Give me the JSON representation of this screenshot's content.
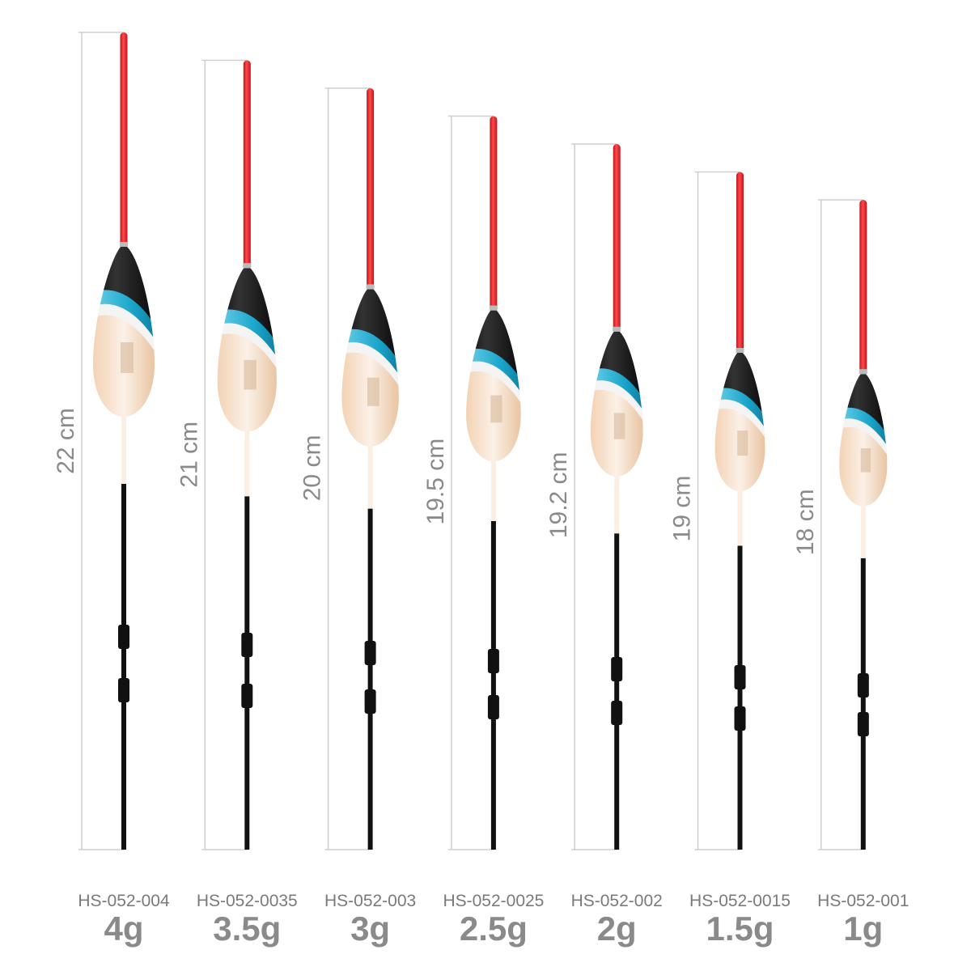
{
  "floats": [
    {
      "length": "22 cm",
      "code": "HS-052-004",
      "weight": "4g"
    },
    {
      "length": "21 cm",
      "code": "HS-052-0035",
      "weight": "3.5g"
    },
    {
      "length": "20 cm",
      "code": "HS-052-003",
      "weight": "3g"
    },
    {
      "length": "19.5 cm",
      "code": "HS-052-0025",
      "weight": "2.5g"
    },
    {
      "length": "19.2 cm",
      "code": "HS-052-002",
      "weight": "2g"
    },
    {
      "length": "19 cm",
      "code": "HS-052-0015",
      "weight": "1.5g"
    },
    {
      "length": "18 cm",
      "code": "HS-052-001",
      "weight": "1g"
    }
  ]
}
